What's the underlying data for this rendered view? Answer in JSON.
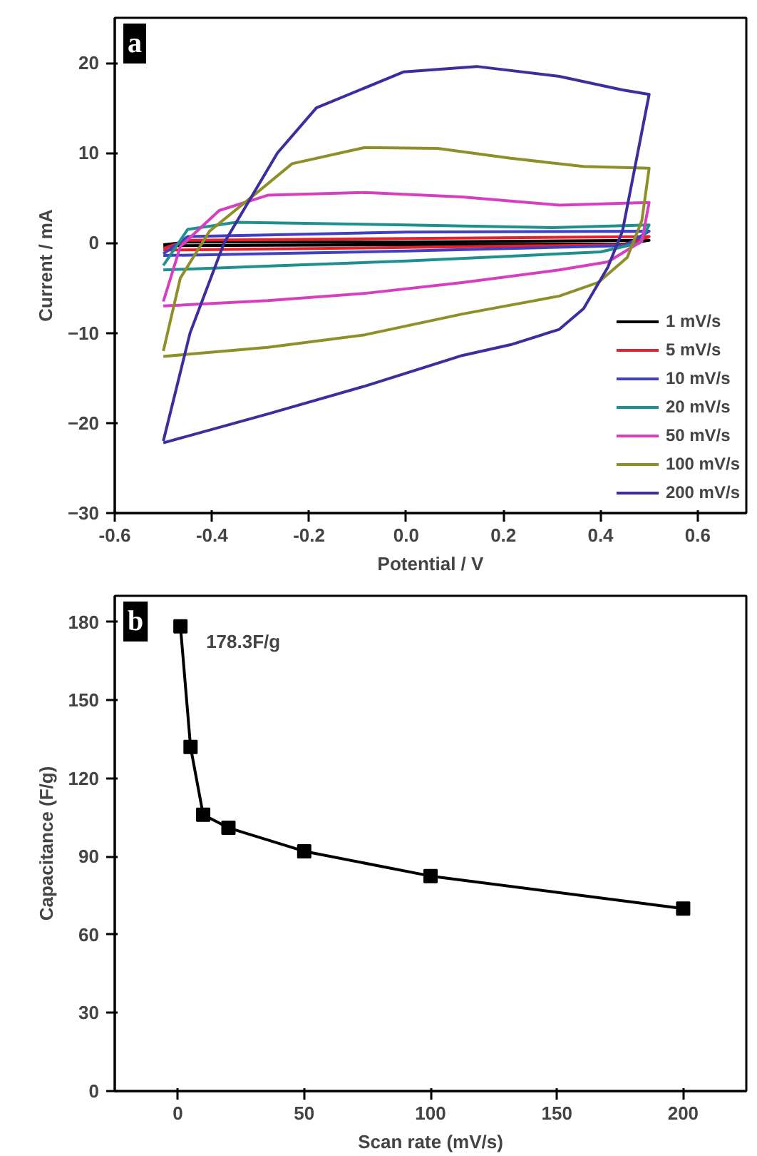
{
  "chart_data": [
    {
      "type": "line",
      "xlabel": "Potential / V",
      "ylabel": "Current / mA",
      "annotations": [
        "a"
      ],
      "xlim": [
        -0.6,
        0.7
      ],
      "ylim": [
        -30,
        25
      ],
      "xticks": [
        {
          "value": -0.6,
          "label": "-0.6"
        },
        {
          "value": -0.4,
          "label": "-0.4"
        },
        {
          "value": -0.2,
          "label": "-0.2"
        },
        {
          "value": 0,
          "label": "0.0"
        },
        {
          "value": 0.2,
          "label": "0.2"
        },
        {
          "value": 0.4,
          "label": "0.4"
        },
        {
          "value": 0.6,
          "label": "0.6"
        }
      ],
      "yticks": [
        -30,
        -20,
        -10,
        0,
        10,
        20
      ],
      "grid": false,
      "legend": "bottom right",
      "marker": "none",
      "line_style": "solid",
      "series": [
        {
          "name": "1 mV/s",
          "color": "#000000",
          "x": [
            -0.5,
            -0.45,
            0,
            0.5,
            0.45,
            0,
            -0.5
          ],
          "values": [
            -0.2,
            0.1,
            0.1,
            0.3,
            -0.1,
            -0.2,
            -0.3
          ]
        },
        {
          "name": "5 mV/s",
          "color": "#e8202a",
          "x": [
            -0.5,
            -0.45,
            0,
            0.5,
            0.45,
            0,
            -0.5
          ],
          "values": [
            -0.6,
            0.3,
            0.5,
            0.7,
            -0.2,
            -0.5,
            -0.8
          ]
        },
        {
          "name": "10 mV/s",
          "color": "#4040c0",
          "x": [
            -0.5,
            -0.45,
            0,
            0.5,
            0.45,
            0,
            -0.5
          ],
          "values": [
            -1.2,
            0.7,
            1.2,
            1.3,
            -0.3,
            -0.9,
            -1.4
          ]
        },
        {
          "name": "20 mV/s",
          "color": "#1f8f8f",
          "x": [
            -0.5,
            -0.45,
            -0.35,
            0,
            0.3,
            0.5,
            0.48,
            0.4,
            0.2,
            0,
            -0.3,
            -0.5
          ],
          "values": [
            -2.5,
            1.5,
            2.3,
            2.0,
            1.7,
            2.0,
            0,
            -1.0,
            -1.5,
            -2.0,
            -2.6,
            -3.0
          ]
        },
        {
          "name": "50 mV/s",
          "color": "#d63fbf",
          "x": [
            -0.5,
            -0.465,
            -0.385,
            -0.285,
            -0.085,
            0.115,
            0.315,
            0.5,
            0.485,
            0.415,
            0.315,
            0.115,
            -0.085,
            -0.285,
            -0.5
          ],
          "values": [
            -6.5,
            -0.4,
            3.6,
            5.3,
            5.6,
            5.1,
            4.2,
            4.5,
            0.2,
            -2.1,
            -3.0,
            -4.4,
            -5.6,
            -6.4,
            -7.0
          ]
        },
        {
          "name": "100 mV/s",
          "color": "#8f8f2a",
          "x": [
            -0.5,
            -0.465,
            -0.405,
            -0.325,
            -0.235,
            -0.085,
            0.065,
            0.215,
            0.365,
            0.5,
            0.485,
            0.455,
            0.395,
            0.315,
            0.115,
            -0.085,
            -0.285,
            -0.5
          ],
          "values": [
            -12.0,
            -3.9,
            1.3,
            4.8,
            8.8,
            10.6,
            10.5,
            9.4,
            8.5,
            8.3,
            2.5,
            -1.6,
            -4.4,
            -5.9,
            -7.9,
            -10.2,
            -11.6,
            -12.6
          ]
        },
        {
          "name": "200 mV/s",
          "color": "#3b2f9e",
          "x": [
            -0.5,
            -0.445,
            -0.375,
            -0.265,
            -0.185,
            -0.005,
            0.145,
            0.315,
            0.445,
            0.5,
            0.445,
            0.415,
            0.365,
            0.315,
            0.215,
            0.115,
            -0.085,
            -0.285,
            -0.5
          ],
          "values": [
            -22.0,
            -10,
            0,
            10,
            15,
            19,
            19.6,
            18.5,
            17,
            16.5,
            1.3,
            -2.7,
            -7.3,
            -9.6,
            -11.3,
            -12.5,
            -15.9,
            -19,
            -22.2
          ]
        }
      ]
    },
    {
      "type": "line",
      "xlabel": "Scan rate (mV/s)",
      "ylabel": "Capacitance (F/g)",
      "annotations": [
        "b",
        {
          "text": "178.3F/g",
          "x": 1,
          "y": 178.3
        }
      ],
      "xlim": [
        -25,
        225
      ],
      "ylim": [
        0,
        190
      ],
      "xticks": [
        0,
        50,
        100,
        150,
        200
      ],
      "yticks": [
        0,
        30,
        60,
        90,
        120,
        150,
        180
      ],
      "grid": false,
      "legend": false,
      "marker": "square",
      "line_style": "solid",
      "series": [
        {
          "color": "#000000",
          "x": [
            1,
            5,
            10,
            20,
            50,
            100,
            200
          ],
          "values": [
            178.3,
            132,
            106,
            101,
            92,
            82.5,
            70
          ]
        }
      ]
    }
  ]
}
